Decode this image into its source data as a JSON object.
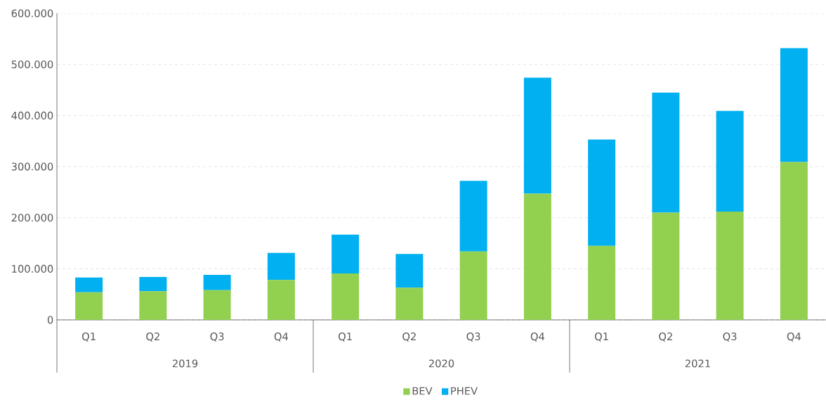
{
  "chart_data": {
    "type": "bar",
    "stacked": true,
    "categories": [
      "Q1",
      "Q2",
      "Q3",
      "Q4",
      "Q1",
      "Q2",
      "Q3",
      "Q4",
      "Q1",
      "Q2",
      "Q3",
      "Q4"
    ],
    "series": [
      {
        "name": "BEV",
        "color": "#92d050",
        "values": [
          54000,
          56000,
          58000,
          78000,
          91000,
          63000,
          134000,
          247000,
          145000,
          210000,
          212000,
          309000
        ]
      },
      {
        "name": "PHEV",
        "color": "#00b0f0",
        "values": [
          29000,
          28000,
          30000,
          53000,
          76000,
          66000,
          138000,
          227000,
          208000,
          235000,
          197000,
          223000
        ]
      }
    ],
    "ylim": [
      0,
      600000
    ],
    "yticks": [
      0,
      {
        "value": 100000,
        "label": "100.000"
      },
      {
        "value": 200000,
        "label": "200.000"
      },
      {
        "value": 300000,
        "label": "300.000"
      },
      {
        "value": 400000,
        "label": "400.000"
      },
      {
        "value": 500000,
        "label": "500.000"
      },
      {
        "value": 600000,
        "label": "600.000"
      }
    ],
    "grid": "y",
    "legend": "bottom",
    "annotations": [
      "2019",
      "2020",
      "2021"
    ]
  }
}
